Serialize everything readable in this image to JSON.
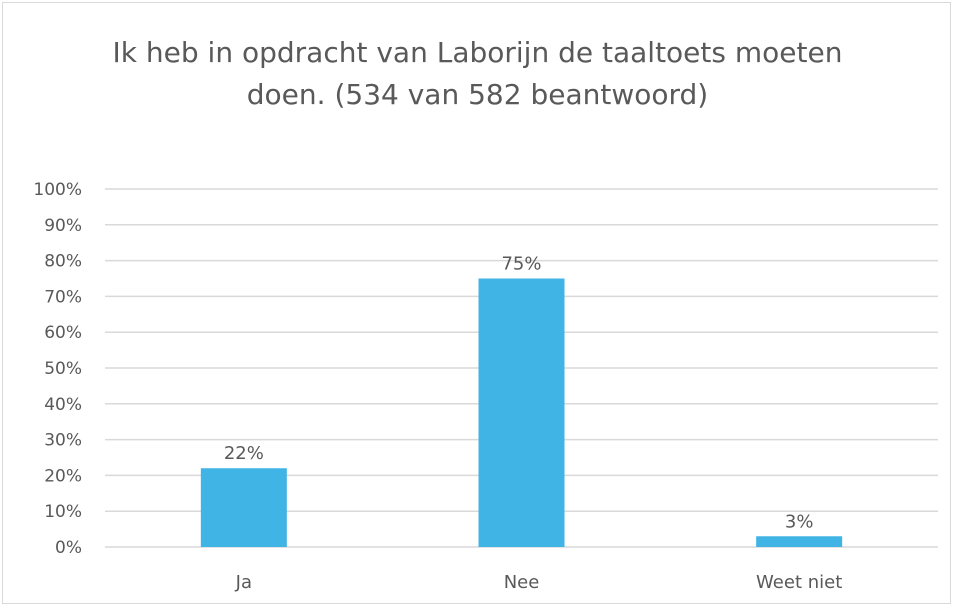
{
  "chart_data": {
    "type": "bar",
    "title_lines": [
      "Ik heb in opdracht van Laborijn de taaltoets moeten",
      "doen. (534 van 582 beantwoord)"
    ],
    "categories": [
      "Ja",
      "Nee",
      "Weet niet"
    ],
    "values": [
      22,
      75,
      3
    ],
    "data_labels": [
      "22%",
      "75%",
      "3%"
    ],
    "ylim": [
      0,
      100
    ],
    "yticks": [
      0,
      10,
      20,
      30,
      40,
      50,
      60,
      70,
      80,
      90,
      100
    ],
    "ytick_labels": [
      "0%",
      "10%",
      "20%",
      "30%",
      "40%",
      "50%",
      "60%",
      "70%",
      "80%",
      "90%",
      "100%"
    ],
    "grid": true,
    "legend": "none",
    "bar_color": "#41b4e6",
    "grid_color": "#d9d9d9",
    "text_color": "#595959"
  }
}
